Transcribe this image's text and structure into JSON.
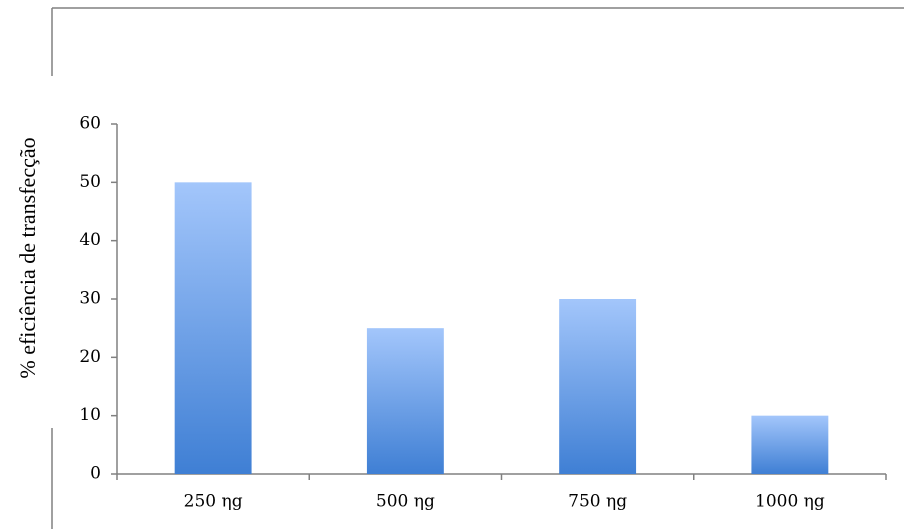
{
  "chart_data": {
    "type": "bar",
    "title": "",
    "xlabel": "",
    "ylabel": "% eficiência de transfecção",
    "categories": [
      "250 ηg",
      "500 ηg",
      "750 ηg",
      "1000 ηg"
    ],
    "values": [
      50,
      25,
      30,
      10
    ],
    "ylim": [
      0,
      60
    ],
    "yticks": [
      0,
      10,
      20,
      30,
      40,
      50,
      60
    ],
    "grid": false,
    "legend": "none",
    "colors": {
      "bar_top": "#a3c6fb",
      "bar_bottom": "#3f7fd4",
      "axis": "#808080",
      "frame": "#808080"
    }
  }
}
